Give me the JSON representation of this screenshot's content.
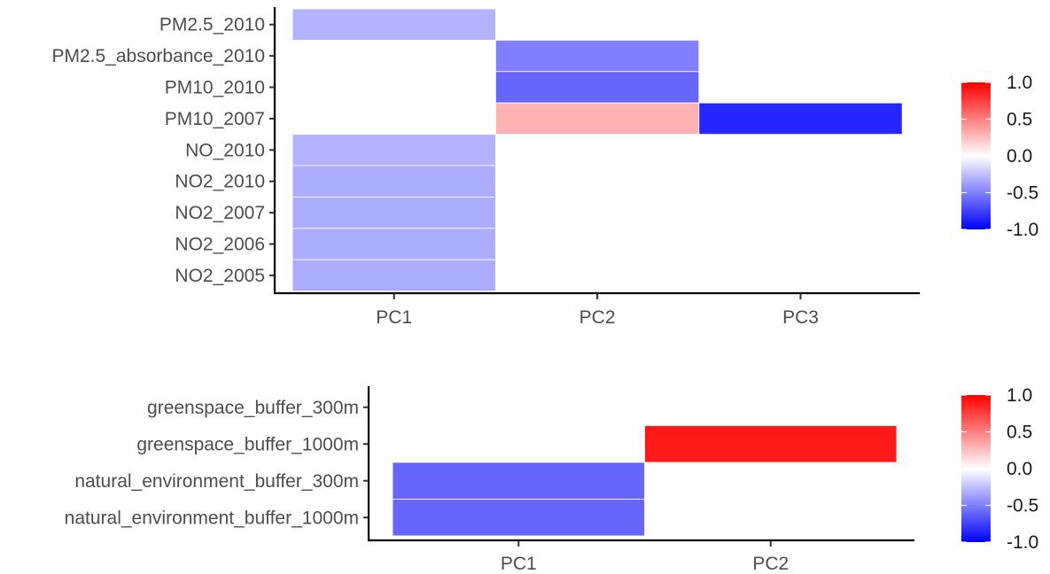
{
  "chart_data": [
    {
      "type": "heatmap",
      "title": "",
      "xlabel": "",
      "ylabel": "",
      "x_categories": [
        "PC1",
        "PC2",
        "PC3"
      ],
      "y_categories": [
        "PM2.5_2010",
        "PM2.5_absorbance_2010",
        "PM10_2010",
        "PM10_2007",
        "NO_2010",
        "NO2_2010",
        "NO2_2007",
        "NO2_2006",
        "NO2_2005"
      ],
      "cells": [
        {
          "x": "PC1",
          "y": "PM2.5_2010",
          "value": -0.3
        },
        {
          "x": "PC2",
          "y": "PM2.5_absorbance_2010",
          "value": -0.5
        },
        {
          "x": "PC2",
          "y": "PM10_2010",
          "value": -0.6
        },
        {
          "x": "PC2",
          "y": "PM10_2007",
          "value": 0.3
        },
        {
          "x": "PC3",
          "y": "PM10_2007",
          "value": -0.85
        },
        {
          "x": "PC1",
          "y": "NO_2010",
          "value": -0.3
        },
        {
          "x": "PC1",
          "y": "NO2_2010",
          "value": -0.32
        },
        {
          "x": "PC1",
          "y": "NO2_2007",
          "value": -0.32
        },
        {
          "x": "PC1",
          "y": "NO2_2006",
          "value": -0.32
        },
        {
          "x": "PC1",
          "y": "NO2_2005",
          "value": -0.32
        }
      ],
      "value_range": [
        -1,
        1
      ],
      "legend": {
        "position": "right",
        "ticks": [
          "1.0",
          "0.5",
          "0.0",
          "-0.5",
          "-1.0"
        ],
        "low_color": "#0000ff",
        "mid_color": "#ffffff",
        "high_color": "#ff0000"
      },
      "grid": false
    },
    {
      "type": "heatmap",
      "title": "",
      "xlabel": "",
      "ylabel": "",
      "x_categories": [
        "PC1",
        "PC2"
      ],
      "y_categories": [
        "greenspace_buffer_300m",
        "greenspace_buffer_1000m",
        "natural_environment_buffer_300m",
        "natural_environment_buffer_1000m"
      ],
      "cells": [
        {
          "x": "PC2",
          "y": "greenspace_buffer_1000m",
          "value": 0.9
        },
        {
          "x": "PC1",
          "y": "natural_environment_buffer_300m",
          "value": -0.6
        },
        {
          "x": "PC1",
          "y": "natural_environment_buffer_1000m",
          "value": -0.6
        }
      ],
      "value_range": [
        -1,
        1
      ],
      "legend": {
        "position": "right",
        "ticks": [
          "1.0",
          "0.5",
          "0.0",
          "-0.5",
          "-1.0"
        ],
        "low_color": "#0000ff",
        "mid_color": "#ffffff",
        "high_color": "#ff0000"
      },
      "grid": false
    }
  ]
}
